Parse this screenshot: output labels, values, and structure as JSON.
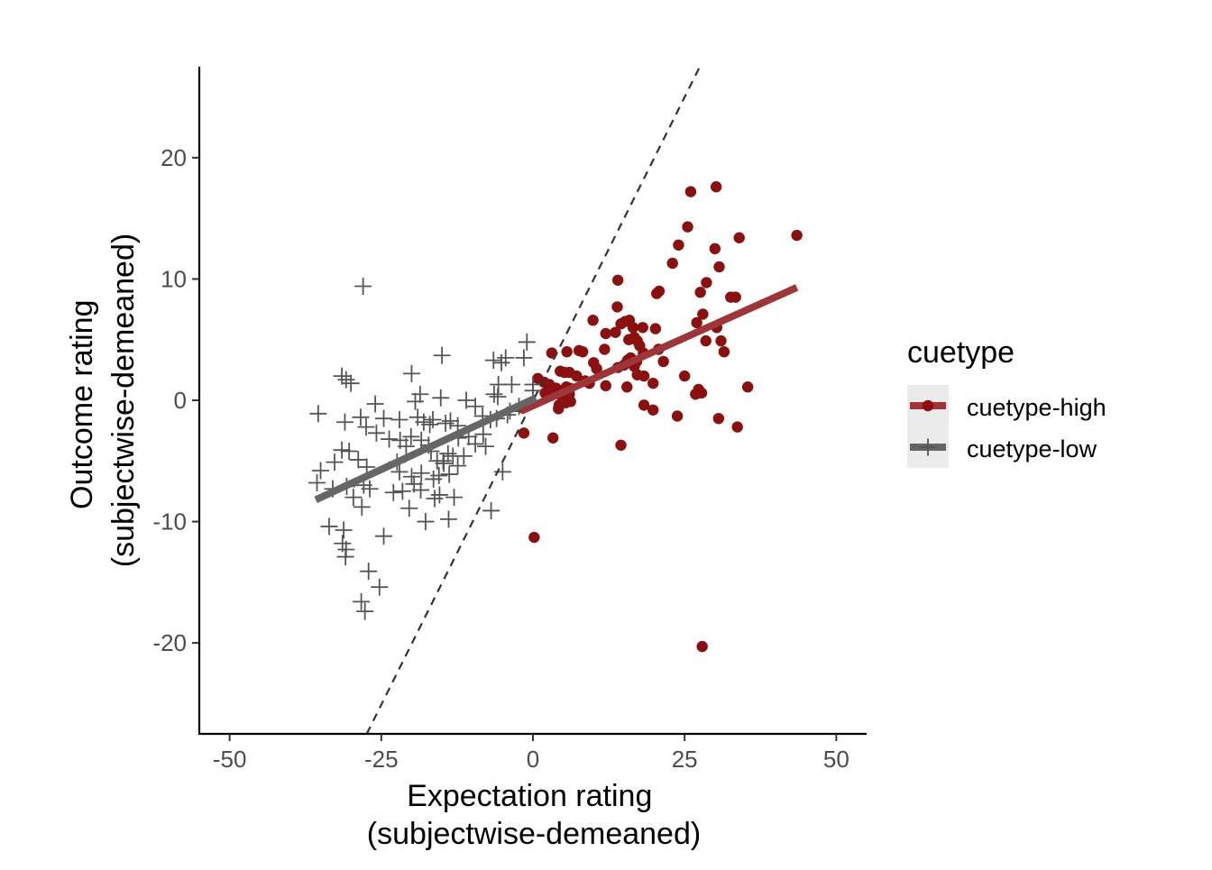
{
  "chart_data": {
    "type": "scatter",
    "xlabel_lines": [
      "Expectation rating",
      "(subjectwise-demeaned)"
    ],
    "ylabel_lines": [
      "Outcome rating",
      "(subjectwise-demeaned)"
    ],
    "xlim": [
      -55,
      55
    ],
    "ylim": [
      -27.5,
      27.5
    ],
    "xticks": [
      -50,
      -25,
      0,
      25,
      50
    ],
    "xtick_labels": [
      "-50",
      "-25",
      "0",
      "25",
      "50"
    ],
    "yticks": [
      -20,
      -10,
      0,
      10,
      20
    ],
    "ytick_labels": [
      "-20",
      "-10",
      "0",
      "10",
      "20"
    ],
    "grid": false,
    "legend": {
      "title": "cuetype",
      "placement": "right",
      "entries": [
        "cuetype-high",
        "cuetype-low"
      ]
    },
    "reference_line": {
      "style": "dashed",
      "color": "#333333",
      "points": [
        [
          -27.4,
          -27.5
        ],
        [
          27.5,
          27.5
        ]
      ]
    },
    "series": [
      {
        "name": "cuetype-high",
        "marker": "circle",
        "color": "#8b1010",
        "fit_color": "#9e3538",
        "fit": [
          [
            -2,
            -0.9
          ],
          [
            43.5,
            9.3
          ]
        ],
        "points": [
          [
            43.5,
            13.6
          ],
          [
            30.2,
            17.6
          ],
          [
            26,
            17.2
          ],
          [
            25.5,
            14.3
          ],
          [
            34,
            13.4
          ],
          [
            24,
            12.8
          ],
          [
            30,
            12.5
          ],
          [
            23,
            11.3
          ],
          [
            30.7,
            11
          ],
          [
            28.6,
            9.7
          ],
          [
            20.8,
            9
          ],
          [
            14,
            9.9
          ],
          [
            20.4,
            8.8
          ],
          [
            27.6,
            8.9
          ],
          [
            32.6,
            8.5
          ],
          [
            33.4,
            8.5
          ],
          [
            13.9,
            7.7
          ],
          [
            28,
            7.1
          ],
          [
            9.9,
            6.6
          ],
          [
            14.5,
            6.3
          ],
          [
            15.2,
            6.5
          ],
          [
            15.9,
            6.6
          ],
          [
            16.5,
            6.0
          ],
          [
            18.1,
            6.0
          ],
          [
            20.2,
            5.9
          ],
          [
            27,
            6.4
          ],
          [
            30.3,
            6.0
          ],
          [
            12,
            5.5
          ],
          [
            13.6,
            5.6
          ],
          [
            15.8,
            5
          ],
          [
            16.7,
            5.2
          ],
          [
            17.2,
            4.9
          ],
          [
            17.6,
            4.5
          ],
          [
            11.8,
            4.2
          ],
          [
            7.6,
            4.1
          ],
          [
            8.2,
            4.0
          ],
          [
            5.6,
            4
          ],
          [
            3.1,
            3.9
          ],
          [
            16.1,
            3.5
          ],
          [
            17.1,
            3.2
          ],
          [
            20.7,
            4.2
          ],
          [
            21.5,
            3.2
          ],
          [
            15,
            2.9
          ],
          [
            14,
            2.7
          ],
          [
            10,
            3.1
          ],
          [
            10.5,
            2.6
          ],
          [
            16.7,
            2.8
          ],
          [
            17.2,
            2.1
          ],
          [
            18.3,
            2.0
          ],
          [
            15.6,
            3.3
          ],
          [
            18.2,
            3.9
          ],
          [
            28.5,
            4.9
          ],
          [
            31,
            4.9
          ],
          [
            31.5,
            4.0
          ],
          [
            25,
            2
          ],
          [
            4.5,
            2.4
          ],
          [
            5.2,
            2.3
          ],
          [
            6,
            2.3
          ],
          [
            7.2,
            2.0
          ],
          [
            8.6,
            1.6
          ],
          [
            9.3,
            1.4
          ],
          [
            0.8,
            1.8
          ],
          [
            1.8,
            1.5
          ],
          [
            2.7,
            1.3
          ],
          [
            3.8,
            1.0
          ],
          [
            5.5,
            1.1
          ],
          [
            6.1,
            1.0
          ],
          [
            4.8,
            0.3
          ],
          [
            2,
            0.6
          ],
          [
            3.2,
            0.7
          ],
          [
            6,
            0.5
          ],
          [
            15.5,
            1.1
          ],
          [
            12,
            1.2
          ],
          [
            19.8,
            1.4
          ],
          [
            27.3,
            0.9
          ],
          [
            27.8,
            0.6
          ],
          [
            26.8,
            0.5
          ],
          [
            35.4,
            1.1
          ],
          [
            5.4,
            -0.2
          ],
          [
            6.2,
            -0.1
          ],
          [
            4.3,
            -0.4
          ],
          [
            4.2,
            -0.7
          ],
          [
            18.3,
            -0.4
          ],
          [
            19.8,
            -0.8
          ],
          [
            23.8,
            -1.3
          ],
          [
            30.6,
            -1.5
          ],
          [
            33.7,
            -2.2
          ],
          [
            -1.8,
            -0.6
          ],
          [
            -1.5,
            -2.7
          ],
          [
            3.3,
            -3.1
          ],
          [
            14.5,
            -3.7
          ],
          [
            0.2,
            -11.3
          ],
          [
            27.9,
            -20.3
          ]
        ]
      },
      {
        "name": "cuetype-low",
        "marker": "plus",
        "color": "#555555",
        "fit_color": "#666666",
        "fit": [
          [
            -35.8,
            -8.2
          ],
          [
            0.5,
            0.2
          ]
        ],
        "points": [
          [
            -28,
            9.4
          ],
          [
            -31.5,
            2
          ],
          [
            -30.8,
            1.7
          ],
          [
            -30,
            1.4
          ],
          [
            -20,
            2.2
          ],
          [
            -18.6,
            0.5
          ],
          [
            -15,
            3.7
          ],
          [
            -6.5,
            3.3
          ],
          [
            -5.2,
            3.1
          ],
          [
            -4.5,
            3.5
          ],
          [
            -1.5,
            3.5
          ],
          [
            -1,
            4.8
          ],
          [
            -3.5,
            1.3
          ],
          [
            -5.7,
            1.3
          ],
          [
            -6.4,
            0.5
          ],
          [
            -5.8,
            0.3
          ],
          [
            0,
            1.3
          ],
          [
            0,
            0.8
          ],
          [
            -26,
            -0.3
          ],
          [
            -24.6,
            -1.5
          ],
          [
            -22,
            -1.6
          ],
          [
            -19.4,
            -0.1
          ],
          [
            -19,
            -1.4
          ],
          [
            -18,
            -1.8
          ],
          [
            -17,
            -2
          ],
          [
            -16.5,
            -1.6
          ],
          [
            -15.2,
            0.2
          ],
          [
            -14.4,
            -1.9
          ],
          [
            -13.6,
            -1.7
          ],
          [
            -12.4,
            -2.1
          ],
          [
            -11,
            0
          ],
          [
            -9.5,
            -0.5
          ],
          [
            -8.3,
            -1.3
          ],
          [
            -7,
            -1.6
          ],
          [
            -6,
            -1.5
          ],
          [
            -4.2,
            -1.2
          ],
          [
            -3.8,
            -0.9
          ],
          [
            -2.3,
            -0.5
          ],
          [
            -35.4,
            -1.1
          ],
          [
            -31,
            -1.8
          ],
          [
            -28.4,
            -1.4
          ],
          [
            -27.5,
            -2.2
          ],
          [
            -25.8,
            -2.7
          ],
          [
            -23.7,
            -3.2
          ],
          [
            -21.9,
            -3.3
          ],
          [
            -20.9,
            -3.8
          ],
          [
            -20.1,
            -3.0
          ],
          [
            -18.4,
            -3.3
          ],
          [
            -17.2,
            -3.7
          ],
          [
            -16.8,
            -4.2
          ],
          [
            -15.8,
            -5.0
          ],
          [
            -14.8,
            -5.0
          ],
          [
            -14,
            -4.4
          ],
          [
            -13.2,
            -4.6
          ],
          [
            -12.3,
            -3.1
          ],
          [
            -10.6,
            -3.0
          ],
          [
            -9.5,
            -3.6
          ],
          [
            -8.2,
            -2.8
          ],
          [
            -7.8,
            -3.8
          ],
          [
            -30.3,
            -4.2
          ],
          [
            -31.5,
            -4.1
          ],
          [
            -32.7,
            -5.1
          ],
          [
            -28.8,
            -4.9
          ],
          [
            -27.4,
            -5.5
          ],
          [
            -22.4,
            -5.1
          ],
          [
            -22,
            -5.9
          ],
          [
            -20,
            -6.3
          ],
          [
            -18.4,
            -6
          ],
          [
            -16.4,
            -6.5
          ],
          [
            -15.5,
            -6.2
          ],
          [
            -14.7,
            -5.2
          ],
          [
            -13.8,
            -6.1
          ],
          [
            -12.4,
            -5.4
          ],
          [
            -11.4,
            -4.6
          ],
          [
            -5,
            -5.9
          ],
          [
            -35,
            -5.8
          ],
          [
            -35.6,
            -6.8
          ],
          [
            -33,
            -7.3
          ],
          [
            -30.7,
            -7.1
          ],
          [
            -27.9,
            -7.0
          ],
          [
            -26.9,
            -7.3
          ],
          [
            -23,
            -7.6
          ],
          [
            -21.5,
            -7.5
          ],
          [
            -19.6,
            -6.9
          ],
          [
            -18.5,
            -7.4
          ],
          [
            -16.2,
            -8.1
          ],
          [
            -15.4,
            -7.8
          ],
          [
            -29.6,
            -8.0
          ],
          [
            -28.2,
            -8.8
          ],
          [
            -20.4,
            -8.9
          ],
          [
            -13,
            -8.0
          ],
          [
            -6.9,
            -9.1
          ],
          [
            -17.7,
            -10
          ],
          [
            -13.9,
            -9.8
          ],
          [
            -33.6,
            -10.4
          ],
          [
            -31.2,
            -10.7
          ],
          [
            -31.4,
            -11.8
          ],
          [
            -30.8,
            -12.3
          ],
          [
            -30.9,
            -12.9
          ],
          [
            -24.6,
            -11.2
          ],
          [
            -27.1,
            -14.1
          ],
          [
            -25.3,
            -15.4
          ],
          [
            -28.3,
            -16.6
          ],
          [
            -27.7,
            -17.4
          ]
        ]
      }
    ]
  }
}
